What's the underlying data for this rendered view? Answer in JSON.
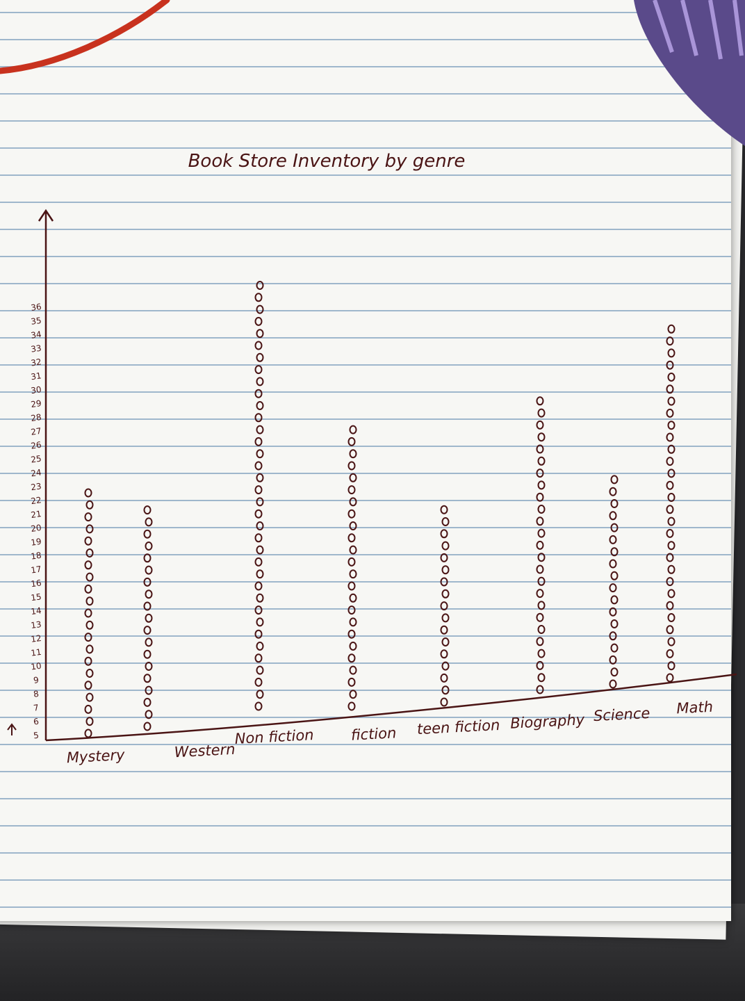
{
  "chart_data": {
    "type": "dot",
    "title": "Book Store Inventory by genre",
    "categories": [
      "Mystery",
      "Western",
      "Non fiction",
      "fiction",
      "teen fiction",
      "Biography",
      "Science",
      "Math"
    ],
    "values": [
      21,
      19,
      36,
      24,
      17,
      25,
      18,
      30
    ],
    "yticks": [
      "5",
      "6",
      "7",
      "8",
      "9",
      "10",
      "11",
      "12",
      "13",
      "14",
      "15",
      "16",
      "17",
      "18",
      "19",
      "20",
      "21",
      "22",
      "23",
      "24",
      "25",
      "26",
      "27",
      "28",
      "29",
      "30",
      "31",
      "32",
      "33",
      "34",
      "35",
      "36"
    ],
    "ylim": [
      5,
      36
    ],
    "colors": {
      "ink": "#4a1414",
      "paper": "#f7f7f4",
      "rule": "#9fb7cc"
    }
  }
}
